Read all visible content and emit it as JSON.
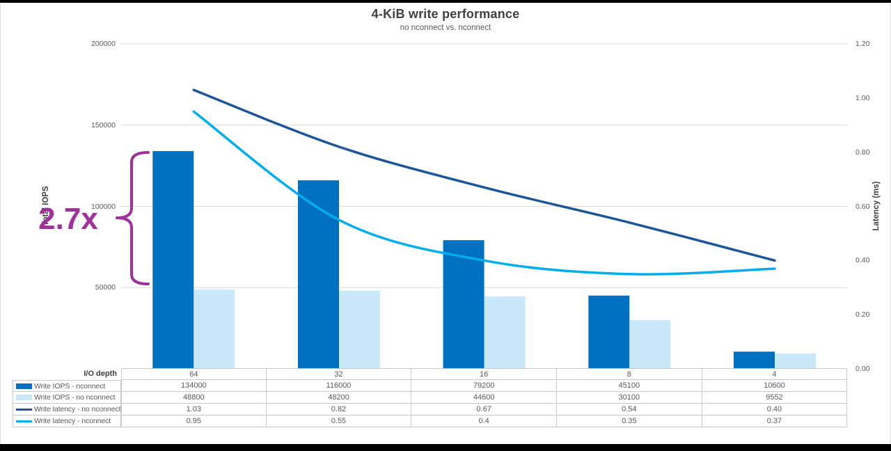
{
  "title": "4-KiB write performance",
  "subtitle": "no nconnect vs. nconnect",
  "annotation": {
    "label": "2.7x",
    "color": "#A0309C"
  },
  "colors": {
    "bar_nconnect": "#0070C0",
    "bar_no_nconnect": "#C9E8F8",
    "line_no_nconnect": "#1B5699",
    "line_nconnect": "#00AEEF",
    "gridline": "#D9D9D9",
    "table_border": "#C9C9C9",
    "title_text": "#404040",
    "tick_text": "#595959"
  },
  "axes": {
    "left": {
      "title": "Total IOPS",
      "ticks": [
        "200000",
        "150000",
        "100000",
        "50000"
      ],
      "max": 200000
    },
    "right": {
      "title": "Latency (ms)",
      "ticks": [
        "1.20",
        "1.00",
        "0.80",
        "0.60",
        "0.40",
        "0.20",
        "0.00"
      ],
      "max": 1.2
    },
    "x": {
      "title": "I/O depth",
      "categories": [
        "64",
        "32",
        "16",
        "8",
        "4"
      ]
    }
  },
  "table": {
    "header_label": "I/O depth"
  },
  "chart_data": {
    "type": "combo",
    "title": "4-KiB write performance",
    "subtitle": "no nconnect vs. nconnect",
    "xlabel": "I/O depth",
    "ylabel": "Total IOPS",
    "ylabel2": "Latency (ms)",
    "categories": [
      "64",
      "32",
      "16",
      "8",
      "4"
    ],
    "ylim_left": [
      0,
      200000
    ],
    "ylim_right": [
      0,
      1.2
    ],
    "grid": true,
    "legend_position": "data-table-below",
    "series": [
      {
        "name": "Write IOPS - nconnect",
        "type": "bar",
        "axis": "left",
        "color": "#0070C0",
        "values": [
          134000,
          116000,
          79200,
          45100,
          10600
        ],
        "display": [
          "134000",
          "116000",
          "79200",
          "45100",
          "10600"
        ]
      },
      {
        "name": "Write IOPS - no nconnect",
        "type": "bar",
        "axis": "left",
        "color": "#C9E8F8",
        "values": [
          48800,
          48200,
          44600,
          30100,
          9552
        ],
        "display": [
          "48800",
          "48200",
          "44600",
          "30100",
          "9552"
        ]
      },
      {
        "name": "Write latency - no nconnect",
        "type": "line",
        "axis": "right",
        "color": "#1B5699",
        "values": [
          1.03,
          0.82,
          0.67,
          0.54,
          0.4
        ],
        "display": [
          "1.03",
          "0.82",
          "0.67",
          "0.54",
          "0.40"
        ]
      },
      {
        "name": "Write latency - nconnect",
        "type": "line",
        "axis": "right",
        "color": "#00AEEF",
        "values": [
          0.95,
          0.55,
          0.4,
          0.35,
          0.37
        ],
        "display": [
          "0.95",
          "0.55",
          "0.4",
          "0.35",
          "0.37"
        ]
      }
    ],
    "annotation": {
      "label": "2.7x",
      "applies_to": "IOPS gain at I/O depth 64"
    }
  }
}
